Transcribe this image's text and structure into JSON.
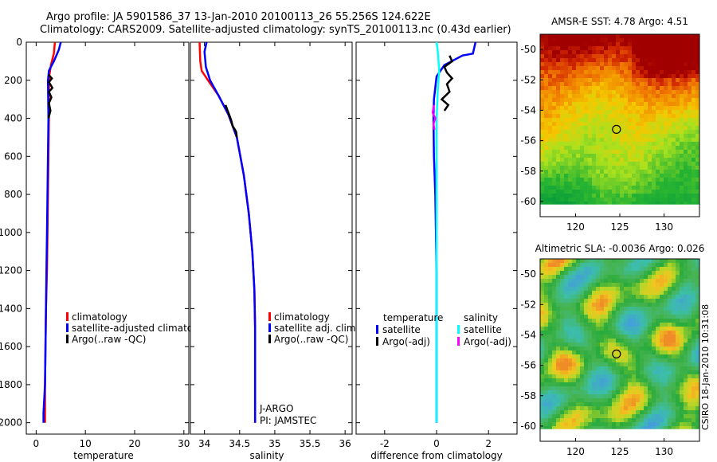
{
  "header": {
    "line1": "Argo profile: JA 5901586_37 13-Jan-2010 20100113_26 55.256S 124.622E",
    "line2": "Climatology: CARS2009. Satellite-adjusted climatology: synTS_20100113.nc (0.43d earlier)"
  },
  "side_stamp": "CSIRO 18-Jan-2010 10:31:08",
  "colors": {
    "climatology": "#ff0000",
    "satellite": "#0000ff",
    "argo": "#000000",
    "sal_satellite": "#00ffff",
    "sal_argo": "#ff00ff"
  },
  "chart_data": [
    {
      "type": "line",
      "name": "temperature",
      "xlabel": "temperature",
      "ylabel": "",
      "xlim": [
        -2,
        31
      ],
      "ylim": [
        0,
        2060
      ],
      "xticks": [
        0,
        10,
        20,
        30
      ],
      "xtick_labels": [
        "0",
        "10",
        "20",
        "30"
      ],
      "yticks": [
        0,
        200,
        400,
        600,
        800,
        1000,
        1200,
        1400,
        1600,
        1800,
        2000
      ],
      "ytick_labels": [
        "0",
        "200",
        "400",
        "600",
        "800",
        "1000",
        "1200",
        "1400",
        "1600",
        "1800",
        "2000"
      ],
      "series": [
        {
          "name": "climatology",
          "color": "#ff0000",
          "x": [
            3.8,
            3.6,
            3.0,
            2.7,
            2.6,
            2.6,
            2.5,
            2.4,
            2.3,
            2.2,
            2.0,
            1.9,
            1.8,
            1.8
          ],
          "y": [
            0,
            60,
            120,
            170,
            250,
            400,
            600,
            800,
            1000,
            1200,
            1400,
            1600,
            1800,
            2000
          ]
        },
        {
          "name": "satellite-adjusted climatology",
          "color": "#0000ff",
          "x": [
            5.0,
            4.6,
            3.6,
            2.6,
            2.4,
            2.5,
            2.4,
            2.3,
            2.2,
            2.1,
            2.0,
            1.9,
            1.8,
            1.5,
            1.5
          ],
          "y": [
            0,
            40,
            100,
            150,
            200,
            400,
            600,
            800,
            1000,
            1200,
            1400,
            1600,
            1800,
            1950,
            2000
          ]
        },
        {
          "name": "Argo(..raw -QC)",
          "color": "#000000",
          "x": [
            2.5,
            3.2,
            2.6,
            3.3,
            2.6,
            3.1,
            2.6,
            2.9,
            2.5
          ],
          "y": [
            170,
            190,
            210,
            240,
            260,
            290,
            320,
            360,
            400
          ]
        }
      ],
      "legend": [
        "climatology",
        "satellite-adjusted climatology",
        "Argo(..raw -QC)"
      ]
    },
    {
      "type": "line",
      "name": "salinity",
      "xlabel": "salinity",
      "ylabel": "",
      "xlim": [
        33.8,
        36.1
      ],
      "ylim": [
        0,
        2060
      ],
      "xticks": [
        34,
        34.5,
        35,
        35.5,
        36
      ],
      "xtick_labels": [
        "34",
        "34.5",
        "35",
        "35.5",
        "36"
      ],
      "series": [
        {
          "name": "climatology",
          "color": "#ff0000",
          "x": [
            33.93,
            33.94,
            33.96,
            34.05,
            34.2,
            34.34,
            34.46,
            34.56,
            34.63,
            34.68,
            34.71,
            34.72,
            34.72,
            34.72
          ],
          "y": [
            0,
            100,
            150,
            200,
            280,
            380,
            500,
            700,
            900,
            1100,
            1300,
            1500,
            1800,
            2000
          ]
        },
        {
          "name": "satellite adj. clim.",
          "color": "#0000ff",
          "x": [
            34.03,
            34.0,
            34.02,
            34.08,
            34.2,
            34.34,
            34.46,
            34.56,
            34.63,
            34.68,
            34.71,
            34.72,
            34.72,
            34.72
          ],
          "y": [
            0,
            50,
            130,
            200,
            280,
            380,
            500,
            700,
            900,
            1100,
            1300,
            1500,
            1800,
            2000
          ]
        },
        {
          "name": "Argo(..raw -QC)",
          "color": "#000000",
          "x": [
            34.3,
            34.34,
            34.38,
            34.4,
            34.45,
            34.46
          ],
          "y": [
            330,
            370,
            410,
            440,
            470,
            500
          ]
        }
      ],
      "legend": [
        "climatology",
        "satellite adj. clim.",
        "Argo(..raw -QC)"
      ],
      "annotation": {
        "line1": "J-ARGO",
        "line2": "PI: JAMSTEC"
      }
    },
    {
      "type": "line",
      "name": "difference",
      "xlabel": "difference from climatology",
      "ylabel": "",
      "xlim": [
        -3.1,
        3.1
      ],
      "ylim": [
        0,
        2060
      ],
      "xticks": [
        -2,
        0,
        2
      ],
      "xtick_labels": [
        "-2",
        "0",
        "2"
      ],
      "series": [
        {
          "name": "temperature satellite",
          "color": "#0000ff",
          "x": [
            1.5,
            1.4,
            1.0,
            0.3,
            0,
            -0.1,
            -0.12,
            -0.1,
            -0.05,
            0,
            0
          ],
          "y": [
            0,
            60,
            70,
            120,
            180,
            300,
            400,
            600,
            800,
            1200,
            2000
          ]
        },
        {
          "name": "temperature Argo(-adj)",
          "color": "#000000",
          "x": [
            0.5,
            0.6,
            0.3,
            0.4,
            0.6,
            0.4,
            0.5,
            0.2,
            0.45,
            0.3
          ],
          "y": [
            70,
            100,
            130,
            160,
            190,
            220,
            260,
            300,
            330,
            360
          ]
        },
        {
          "name": "salinity satellite",
          "color": "#00ffff",
          "x": [
            0,
            0.05,
            0.1,
            0.05,
            0,
            0,
            0
          ],
          "y": [
            0,
            50,
            150,
            250,
            400,
            1000,
            2000
          ]
        },
        {
          "name": "salinity Argo(-adj)",
          "color": "#ff00ff",
          "x": [
            -0.1,
            -0.15,
            -0.05,
            -0.12,
            -0.08
          ],
          "y": [
            330,
            370,
            400,
            430,
            460
          ]
        }
      ],
      "legend_titles": [
        "temperature",
        "salinity"
      ],
      "legend": [
        "satellite",
        "Argo(-adj)",
        "satellite",
        "Argo(-adj)"
      ]
    },
    {
      "type": "heatmap",
      "name": "sst-map",
      "title": "AMSR-E SST: 4.78 Argo: 4.51",
      "xlim": [
        116,
        134
      ],
      "ylim": [
        -61,
        -49
      ],
      "xticks": [
        120,
        125,
        130
      ],
      "xtick_labels": [
        "120",
        "125",
        "130"
      ],
      "yticks": [
        -50,
        -52,
        -54,
        -56,
        -58,
        -60
      ],
      "ytick_labels": [
        "-50",
        "-52",
        "-54",
        "-56",
        "-58",
        "-60"
      ],
      "float_position": {
        "lon": 124.622,
        "lat": -55.256
      },
      "data_extent": {
        "lat_min": -60.2
      }
    },
    {
      "type": "heatmap",
      "name": "sla-map",
      "title": "Altimetric SLA: -0.0036 Argo: 0.026",
      "xlim": [
        116,
        134
      ],
      "ylim": [
        -61,
        -49
      ],
      "xticks": [
        120,
        125,
        130
      ],
      "xtick_labels": [
        "120",
        "125",
        "130"
      ],
      "yticks": [
        -50,
        -52,
        -54,
        -56,
        -58,
        -60
      ],
      "ytick_labels": [
        "-50",
        "-52",
        "-54",
        "-56",
        "-58",
        "-60"
      ],
      "float_position": {
        "lon": 124.622,
        "lat": -55.256
      },
      "data_extent": {
        "lat_min": -60.2
      }
    }
  ]
}
